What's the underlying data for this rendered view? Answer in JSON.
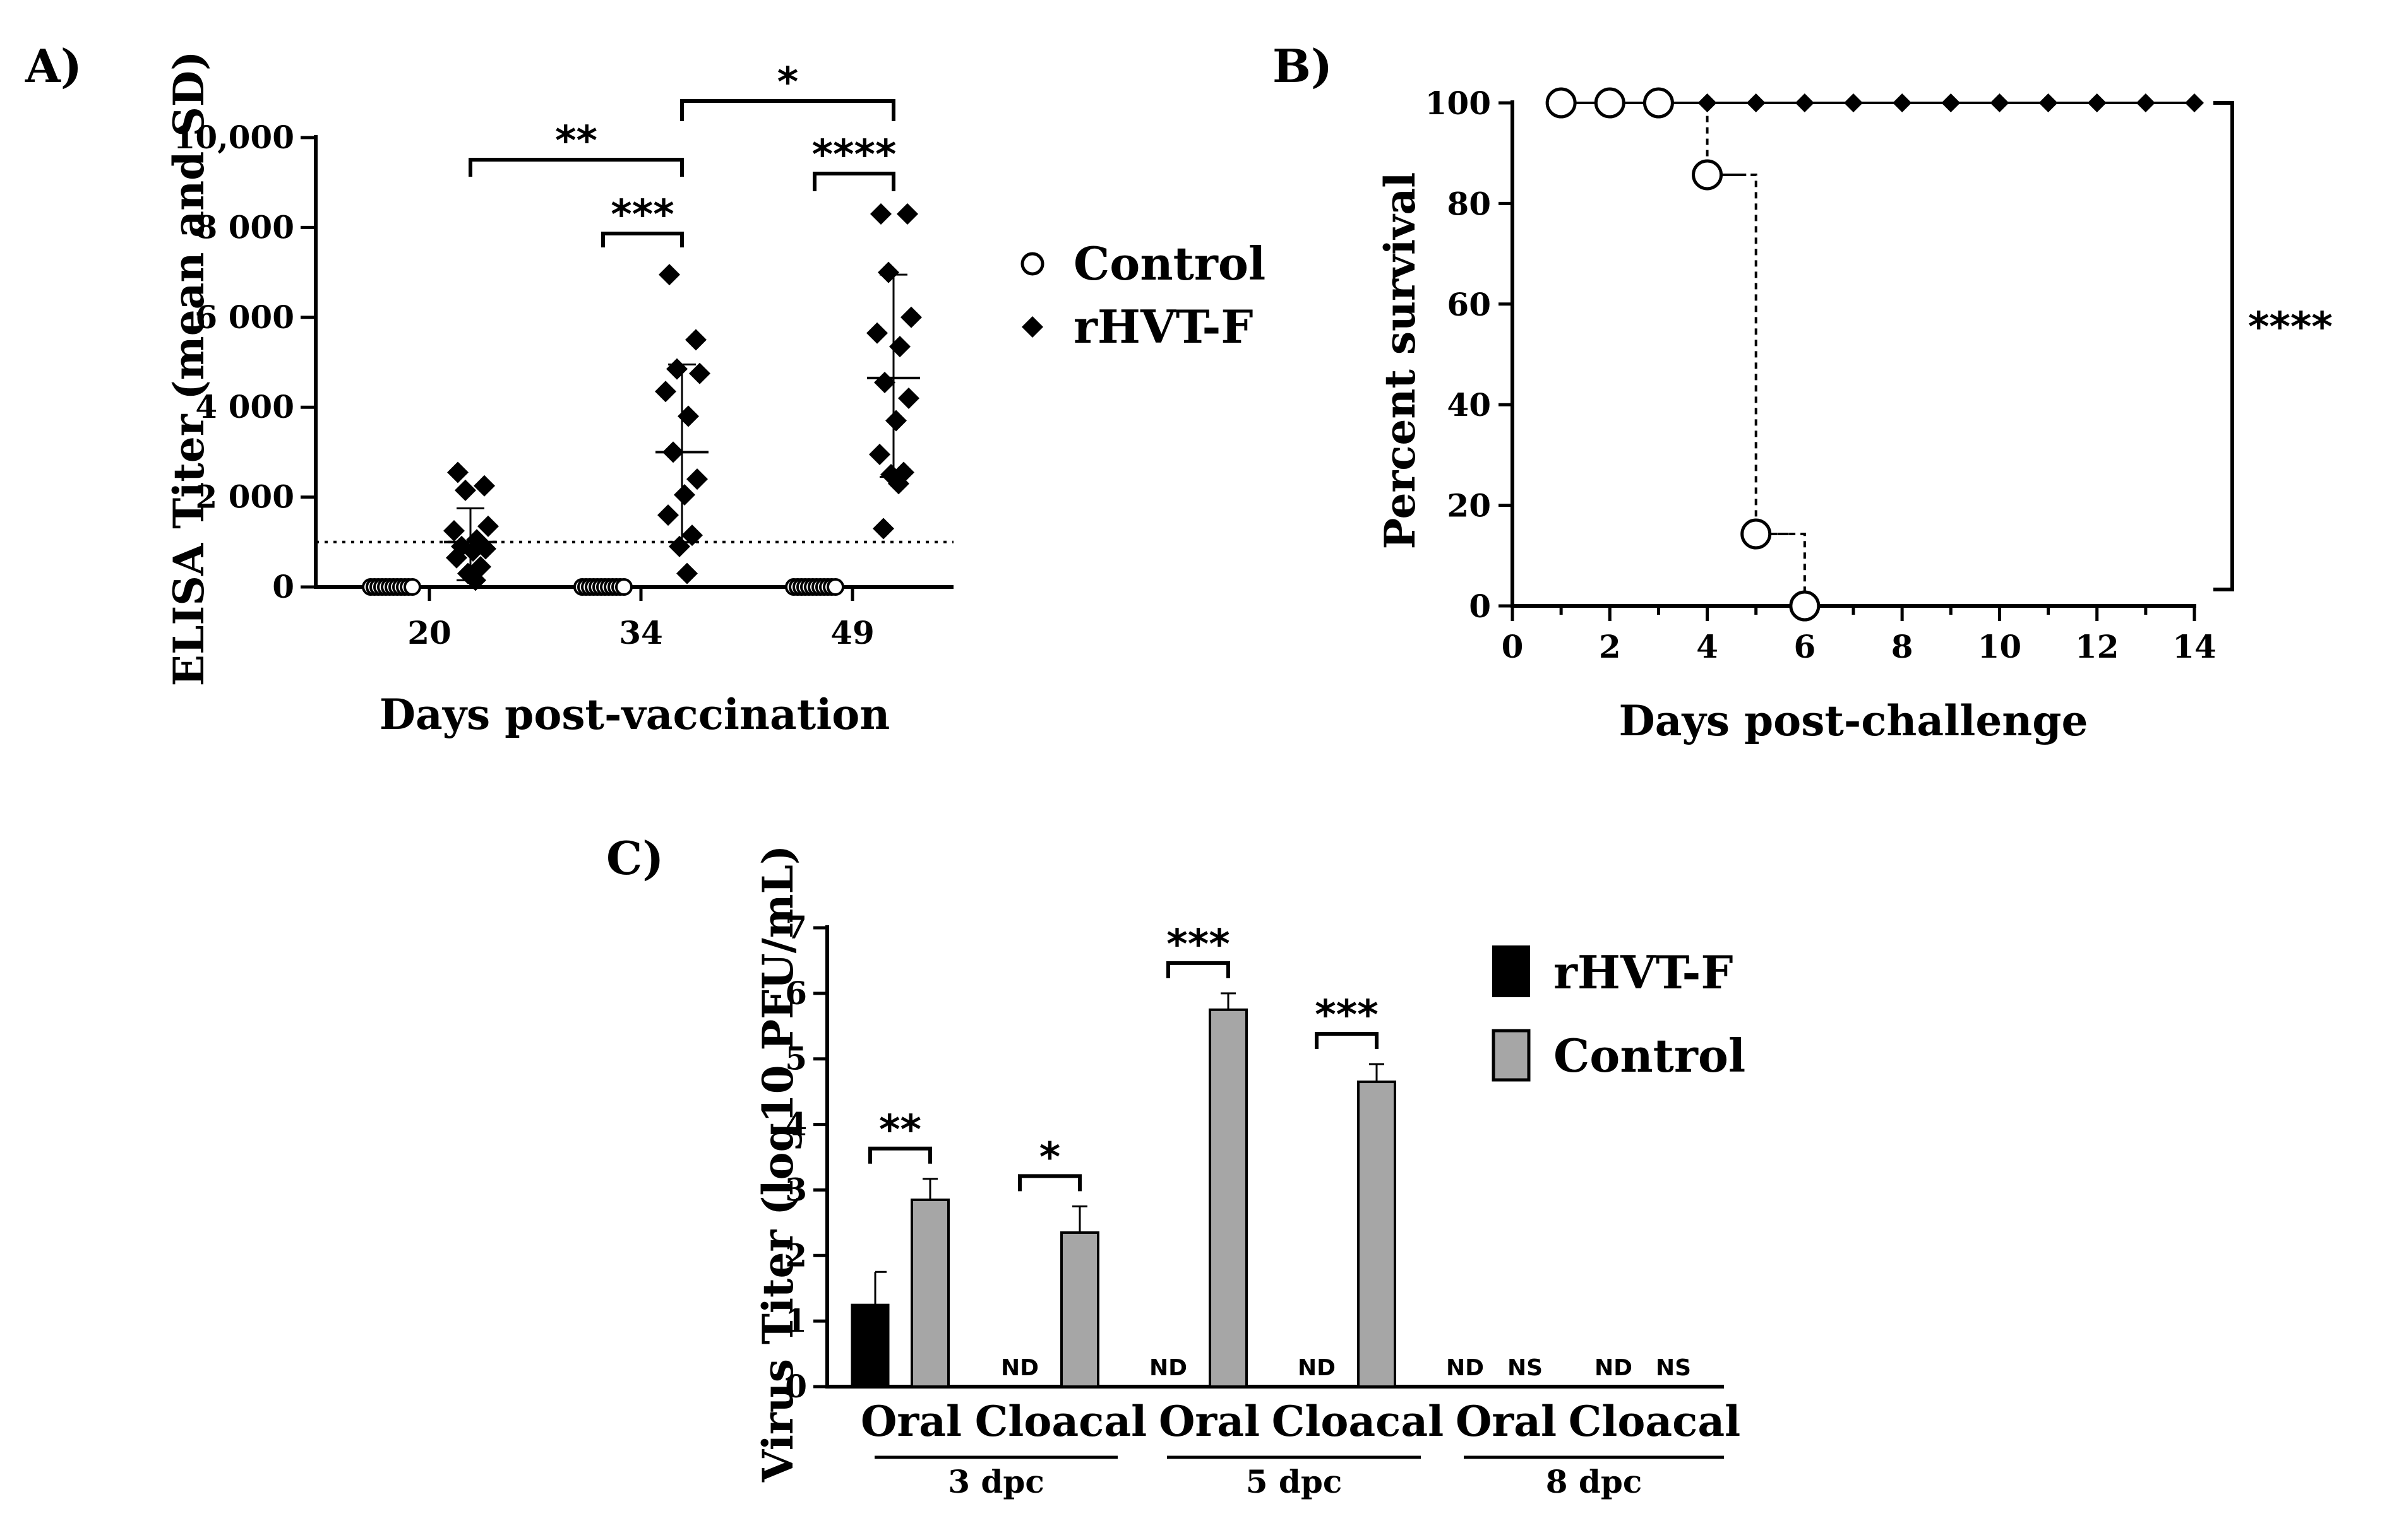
{
  "chart_data": [
    {
      "panel_label": "A)",
      "type": "scatter",
      "xlabel": "Days post-vaccination",
      "ylabel": "ELISA Titer (mean and SD)",
      "ylim": [
        0,
        10000
      ],
      "yticks": [
        0,
        2000,
        4000,
        6000,
        8000,
        10000
      ],
      "ytick_labels": [
        "0",
        "2 000",
        "4 000",
        "6 000",
        "8 000",
        "10,000"
      ],
      "categories": [
        "20",
        "34",
        "49"
      ],
      "threshold": 1000,
      "legend": [
        {
          "name": "Control",
          "marker": "open-circle"
        },
        {
          "name": "rHVT-F",
          "marker": "filled-diamond"
        }
      ],
      "series": [
        {
          "name": "Control",
          "groups": [
            {
              "day": "20",
              "values": [
                0,
                0,
                0,
                0,
                0,
                0,
                0,
                0,
                0,
                0,
                0,
                0
              ]
            },
            {
              "day": "34",
              "values": [
                0,
                0,
                0,
                0,
                0,
                0,
                0,
                0,
                0,
                0,
                0,
                0
              ]
            },
            {
              "day": "49",
              "values": [
                0,
                0,
                0,
                0,
                0,
                0,
                0,
                0,
                0,
                0,
                0,
                0
              ]
            }
          ]
        },
        {
          "name": "rHVT-F",
          "groups": [
            {
              "day": "20",
              "mean": 1000,
              "sd_low": 150,
              "sd_high": 1750,
              "values": [
                2550,
                2250,
                2150,
                1350,
                1250,
                1050,
                900,
                850,
                800,
                650,
                450,
                300,
                150
              ]
            },
            {
              "day": "34",
              "mean": 3000,
              "sd_low": 1000,
              "sd_high": 4950,
              "values": [
                6950,
                5500,
                4850,
                4750,
                4350,
                3800,
                3000,
                2400,
                2050,
                1600,
                1150,
                900,
                300
              ]
            },
            {
              "day": "49",
              "mean": 4650,
              "sd_low": 2450,
              "sd_high": 6950,
              "values": [
                8300,
                8300,
                7000,
                6000,
                5650,
                5350,
                4550,
                4200,
                3700,
                2950,
                2550,
                2500,
                2300,
                1300
              ]
            }
          ]
        }
      ],
      "significance": [
        {
          "label": "**",
          "between": [
            "rHVT-F 20",
            "rHVT-F 34"
          ]
        },
        {
          "label": "***",
          "between": [
            "Control 34",
            "rHVT-F 34"
          ]
        },
        {
          "label": "*",
          "between": [
            "rHVT-F 34",
            "rHVT-F 49"
          ]
        },
        {
          "label": "****",
          "between": [
            "Control 49",
            "rHVT-F 49"
          ]
        }
      ]
    },
    {
      "panel_label": "B)",
      "type": "line",
      "xlabel": "Days post-challenge",
      "ylabel": "Percent survival",
      "xlim": [
        0,
        14
      ],
      "ylim": [
        0,
        100
      ],
      "xticks": [
        0,
        2,
        4,
        6,
        8,
        10,
        12,
        14
      ],
      "yticks": [
        0,
        20,
        40,
        60,
        80,
        100
      ],
      "series": [
        {
          "name": "rHVT-F",
          "marker": "filled-diamond",
          "style": "solid",
          "x": [
            1,
            2,
            3,
            4,
            5,
            6,
            7,
            8,
            9,
            10,
            11,
            12,
            13,
            14
          ],
          "y": [
            100,
            100,
            100,
            100,
            100,
            100,
            100,
            100,
            100,
            100,
            100,
            100,
            100,
            100
          ]
        },
        {
          "name": "Control",
          "marker": "open-circle",
          "style": "dashed-step",
          "x": [
            1,
            2,
            3,
            4,
            5,
            6
          ],
          "y": [
            100,
            100,
            100,
            85.7,
            14.3,
            0
          ]
        }
      ],
      "significance": [
        {
          "label": "****",
          "between": [
            "rHVT-F",
            "Control"
          ]
        }
      ]
    },
    {
      "panel_label": "C)",
      "type": "bar",
      "ylabel": "Virus Titer (log10 PFU/mL)",
      "ylim": [
        0,
        7
      ],
      "yticks": [
        0,
        1,
        2,
        3,
        4,
        5,
        6,
        7
      ],
      "legend": [
        {
          "name": "rHVT-F",
          "color": "#000000"
        },
        {
          "name": "Control",
          "color": "#a6a6a6"
        }
      ],
      "groups": [
        {
          "label": "3 dpc",
          "categories": [
            {
              "label": "Oral",
              "rhvt": {
                "value": 1.25,
                "err": 0.5,
                "text": null
              },
              "control": {
                "value": 2.85,
                "err": 0.32,
                "text": null
              },
              "sig": "**"
            },
            {
              "label": "Cloacal",
              "rhvt": {
                "value": 0,
                "err": 0,
                "text": "ND"
              },
              "control": {
                "value": 2.35,
                "err": 0.4,
                "text": null
              },
              "sig": "*"
            }
          ]
        },
        {
          "label": "5 dpc",
          "categories": [
            {
              "label": "Oral",
              "rhvt": {
                "value": 0,
                "err": 0,
                "text": "ND"
              },
              "control": {
                "value": 5.75,
                "err": 0.25,
                "text": null
              },
              "sig": "***"
            },
            {
              "label": "Cloacal",
              "rhvt": {
                "value": 0,
                "err": 0,
                "text": "ND"
              },
              "control": {
                "value": 4.65,
                "err": 0.27,
                "text": null
              },
              "sig": "***"
            }
          ]
        },
        {
          "label": "8 dpc",
          "categories": [
            {
              "label": "Oral",
              "rhvt": {
                "value": 0,
                "err": 0,
                "text": "ND"
              },
              "control": {
                "value": 0,
                "err": 0,
                "text": "NS"
              },
              "sig": null
            },
            {
              "label": "Cloacal",
              "rhvt": {
                "value": 0,
                "err": 0,
                "text": "ND"
              },
              "control": {
                "value": 0,
                "err": 0,
                "text": "NS"
              },
              "sig": null
            }
          ]
        }
      ]
    }
  ]
}
